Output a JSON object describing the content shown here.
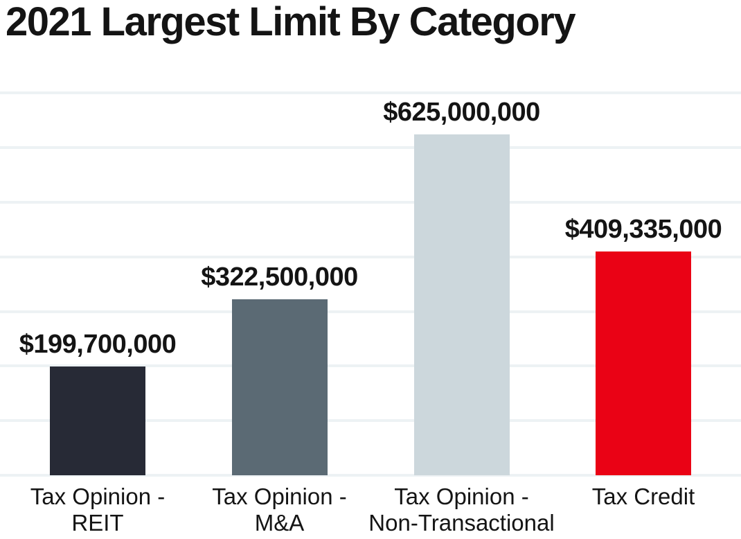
{
  "chart_data": {
    "type": "bar",
    "title": "2021 Largest Limit By Category",
    "categories": [
      "Tax Opinion - REIT",
      "Tax Opinion - M&A",
      "Tax Opinion - Non-Transactional",
      "Tax Credit"
    ],
    "category_lines": [
      [
        "Tax Opinion -",
        "REIT"
      ],
      [
        "Tax Opinion -",
        "M&A"
      ],
      [
        "Tax Opinion -",
        "Non-Transactional"
      ],
      [
        "Tax Credit"
      ]
    ],
    "values": [
      199700000,
      322500000,
      625000000,
      409335000
    ],
    "value_labels": [
      "$199,700,000",
      "$322,500,000",
      "$625,000,000",
      "$409,335,000"
    ],
    "bar_colors": [
      "#272a36",
      "#5b6a74",
      "#ccd7dc",
      "#ea0215"
    ],
    "xlabel": "",
    "ylabel": "",
    "ylim": [
      0,
      700000000
    ],
    "gridline_step": 100000000,
    "gridline_color": "#edf2f4",
    "grid": "horizontal",
    "legend": "none",
    "text_color": "#141414"
  }
}
